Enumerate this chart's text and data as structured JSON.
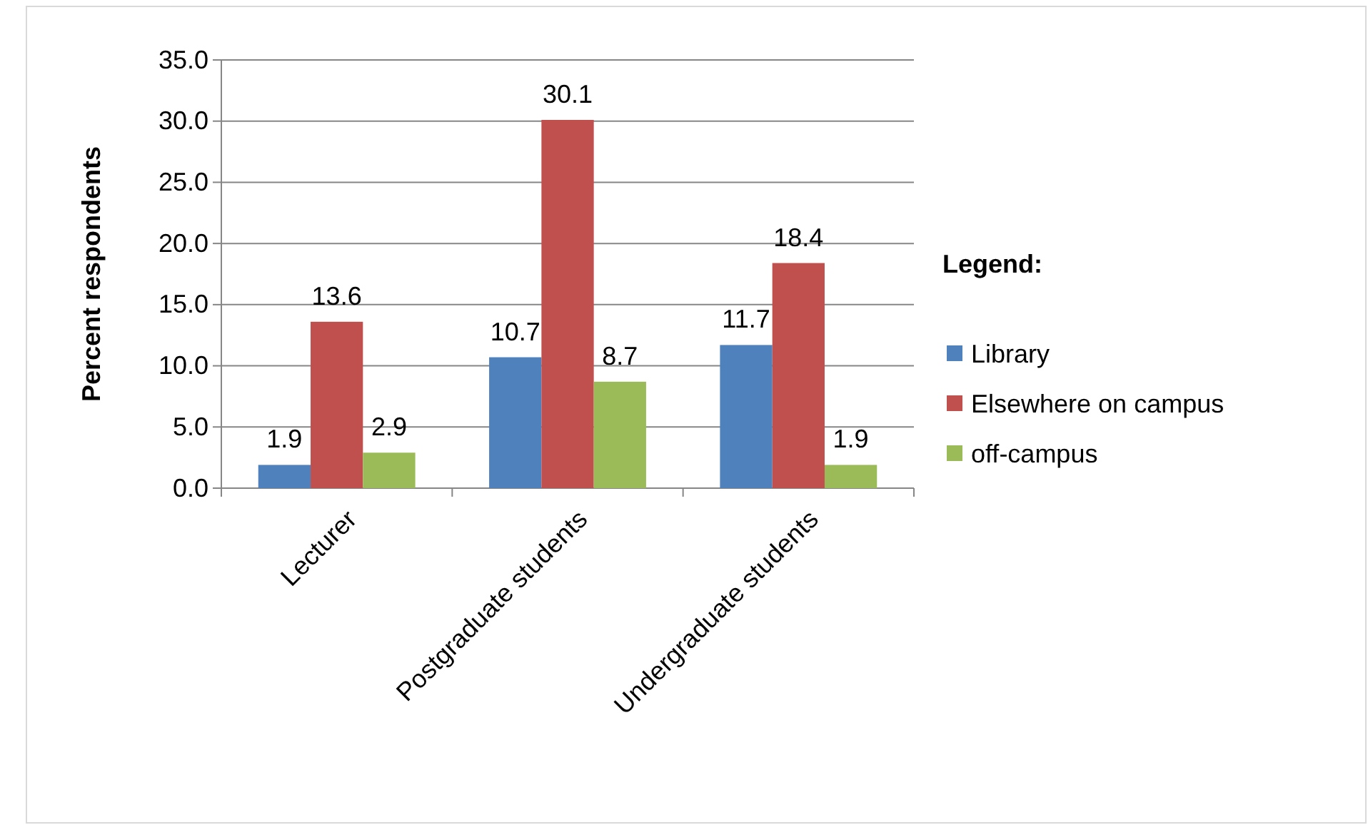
{
  "chart_data": {
    "type": "bar",
    "ylabel": "Percent respondents",
    "legend_title": "Legend:",
    "categories": [
      "Lecturer",
      "Postgraduate students",
      "Undergraduate students"
    ],
    "series": [
      {
        "name": "Library",
        "color": "#4f81bd",
        "values": [
          1.9,
          10.7,
          11.7
        ]
      },
      {
        "name": "Elsewhere on campus",
        "color": "#c0504d",
        "values": [
          13.6,
          30.1,
          18.4
        ]
      },
      {
        "name": "off-campus",
        "color": "#9bbb59",
        "values": [
          2.9,
          8.7,
          1.9
        ]
      }
    ],
    "ylim": [
      0,
      35
    ],
    "yticks": [
      {
        "value": 0,
        "label": "0.0"
      },
      {
        "value": 5,
        "label": "5.0"
      },
      {
        "value": 10,
        "label": "10.0"
      },
      {
        "value": 15,
        "label": "15.0"
      },
      {
        "value": 20,
        "label": "20.0"
      },
      {
        "value": 25,
        "label": "25.0"
      },
      {
        "value": 30,
        "label": "30.0"
      },
      {
        "value": 35,
        "label": "35.0"
      }
    ],
    "grid": "y",
    "legend": "right",
    "data_labels": true
  }
}
